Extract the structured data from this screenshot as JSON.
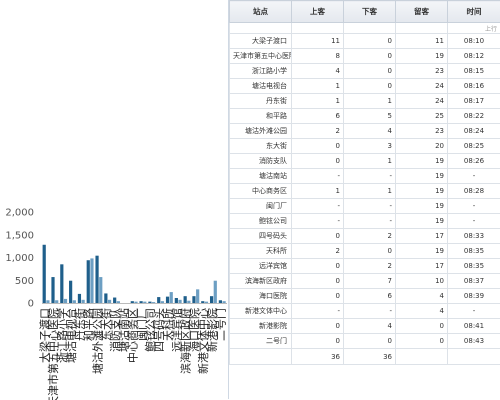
{
  "chart_data": {
    "type": "bar",
    "ylim": [
      0,
      2000
    ],
    "yticks": [
      "0",
      "500",
      "1,000",
      "1,500",
      "2,000"
    ],
    "colors": [
      "#1f5f8b",
      "#6d9fc3",
      "#a6bfd4"
    ],
    "categories": [
      "大梁子渡口",
      "天津市第五中心医院",
      "浙江路小学",
      "塘沽电视台",
      "丹东街",
      "和平路",
      "塘沽外滩公园",
      "东大街",
      "消防支队",
      "塘沽南站",
      "中心商务区",
      "闽门厂",
      "鲍铉公司",
      "四号码头",
      "天科所",
      "远洋宾馆",
      "滨海新区政府",
      "海口医院",
      "新港文体中心",
      "新港影院",
      "二号门"
    ],
    "series": [
      {
        "values": [
          1280,
          570,
          850,
          490,
          200,
          940,
          1040,
          210,
          120,
          0,
          40,
          40,
          30,
          130,
          140,
          110,
          150,
          150,
          40,
          150,
          60
        ]
      },
      {
        "values": [
          60,
          60,
          90,
          60,
          70,
          980,
          570,
          70,
          40,
          0,
          30,
          30,
          20,
          40,
          240,
          70,
          50,
          300,
          30,
          490,
          40
        ]
      },
      {
        "values": [
          0,
          0,
          0,
          0,
          0,
          0,
          0,
          0,
          0,
          0,
          0,
          0,
          0,
          0,
          0,
          0,
          0,
          0,
          0,
          0,
          0
        ]
      }
    ]
  },
  "table": {
    "headers": [
      "站点",
      "上客",
      "下客",
      "留客",
      "时间"
    ],
    "sub_note": "上行",
    "rows": [
      {
        "station": "大梁子渡口",
        "on": "11",
        "off": "0",
        "stay": "11",
        "time": "08:10"
      },
      {
        "station": "天津市第五中心医院",
        "on": "8",
        "off": "0",
        "stay": "19",
        "time": "08:12"
      },
      {
        "station": "浙江路小学",
        "on": "4",
        "off": "0",
        "stay": "23",
        "time": "08:15"
      },
      {
        "station": "塘沽电视台",
        "on": "1",
        "off": "0",
        "stay": "24",
        "time": "08:16"
      },
      {
        "station": "丹东街",
        "on": "1",
        "off": "1",
        "stay": "24",
        "time": "08:17"
      },
      {
        "station": "和平路",
        "on": "6",
        "off": "5",
        "stay": "25",
        "time": "08:22"
      },
      {
        "station": "塘沽外滩公园",
        "on": "2",
        "off": "4",
        "stay": "23",
        "time": "08:24"
      },
      {
        "station": "东大街",
        "on": "0",
        "off": "3",
        "stay": "20",
        "time": "08:25"
      },
      {
        "station": "消防支队",
        "on": "0",
        "off": "1",
        "stay": "19",
        "time": "08:26"
      },
      {
        "station": "塘沽南站",
        "on": "-",
        "off": "-",
        "stay": "19",
        "time": "-"
      },
      {
        "station": "中心商务区",
        "on": "1",
        "off": "1",
        "stay": "19",
        "time": "08:28"
      },
      {
        "station": "闽门厂",
        "on": "-",
        "off": "-",
        "stay": "19",
        "time": "-"
      },
      {
        "station": "鲍铉公司",
        "on": "-",
        "off": "-",
        "stay": "19",
        "time": "-"
      },
      {
        "station": "四号码头",
        "on": "0",
        "off": "2",
        "stay": "17",
        "time": "08:33"
      },
      {
        "station": "天科所",
        "on": "2",
        "off": "0",
        "stay": "19",
        "time": "08:35"
      },
      {
        "station": "远洋宾馆",
        "on": "0",
        "off": "2",
        "stay": "17",
        "time": "08:35"
      },
      {
        "station": "滨海新区政府",
        "on": "0",
        "off": "7",
        "stay": "10",
        "time": "08:37"
      },
      {
        "station": "海口医院",
        "on": "0",
        "off": "6",
        "stay": "4",
        "time": "08:39"
      },
      {
        "station": "新港文体中心",
        "on": "-",
        "off": "-",
        "stay": "4",
        "time": "-"
      },
      {
        "station": "新港影院",
        "on": "0",
        "off": "4",
        "stay": "0",
        "time": "08:41"
      },
      {
        "station": "二号门",
        "on": "0",
        "off": "0",
        "stay": "0",
        "time": "08:43"
      }
    ],
    "totals": {
      "on": "36",
      "off": "36"
    }
  }
}
